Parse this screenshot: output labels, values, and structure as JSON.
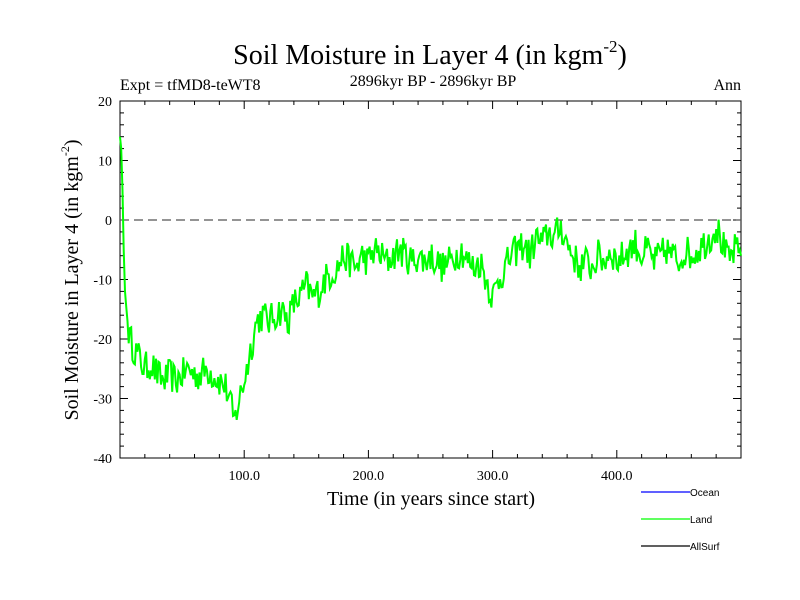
{
  "chart_data": {
    "type": "line",
    "title": "Soil Moisture in Layer 4 (in kgm",
    "title_sup": "-2",
    "title_close": ")",
    "subtitle_left": "Expt = tfMD8-teWT8",
    "subtitle_center": "2896kyr BP - 2896kyr BP",
    "subtitle_right": "Ann",
    "xlabel": "Time (in years since start)",
    "ylabel": "Soil Moisture in Layer 4 (in kgm",
    "ylabel_sup": "-2",
    "ylabel_close": ")",
    "xlim": [
      0,
      500
    ],
    "ylim": [
      -40,
      20
    ],
    "x_ticks": [
      {
        "value": 100,
        "label": "100.0"
      },
      {
        "value": 200,
        "label": "200.0"
      },
      {
        "value": 300,
        "label": "300.0"
      },
      {
        "value": 400,
        "label": "400.0"
      }
    ],
    "y_ticks": [
      {
        "value": 20,
        "label": "20"
      },
      {
        "value": 10,
        "label": "10"
      },
      {
        "value": 0,
        "label": "0"
      },
      {
        "value": -10,
        "label": "-10"
      },
      {
        "value": -20,
        "label": "-20"
      },
      {
        "value": -30,
        "label": "-30"
      },
      {
        "value": -40,
        "label": "-40"
      }
    ],
    "reference_line": {
      "y": 0,
      "style": "dashed"
    },
    "legend": [
      {
        "name": "Ocean",
        "color": "#0000ff"
      },
      {
        "name": "Land",
        "color": "#00ff00"
      },
      {
        "name": "AllSurf",
        "color": "#000000"
      }
    ],
    "series": [
      {
        "name": "Land",
        "color": "#00ff00",
        "x": [
          0,
          1,
          2,
          3,
          4,
          6,
          8,
          10,
          15,
          20,
          25,
          30,
          35,
          40,
          45,
          50,
          55,
          60,
          65,
          70,
          75,
          80,
          85,
          88,
          90,
          92,
          95,
          100,
          105,
          110,
          115,
          120,
          125,
          130,
          135,
          140,
          145,
          150,
          155,
          160,
          165,
          170,
          175,
          180,
          185,
          190,
          195,
          200,
          205,
          210,
          215,
          220,
          225,
          230,
          235,
          240,
          245,
          250,
          255,
          260,
          265,
          270,
          275,
          280,
          285,
          290,
          295,
          300,
          305,
          310,
          315,
          320,
          325,
          330,
          335,
          340,
          345,
          350,
          355,
          360,
          365,
          370,
          375,
          380,
          385,
          390,
          395,
          400,
          405,
          410,
          415,
          420,
          425,
          430,
          435,
          440,
          445,
          450,
          455,
          460,
          465,
          470,
          475,
          480,
          485,
          490,
          495,
          500
        ],
        "values": [
          14,
          12,
          5,
          -5,
          -12,
          -17,
          -20,
          -21,
          -23,
          -25,
          -24,
          -26,
          -27,
          -26,
          -27,
          -26,
          -25,
          -26,
          -26,
          -25,
          -26,
          -27,
          -28,
          -30,
          -32,
          -34,
          -31,
          -27,
          -22,
          -17,
          -16,
          -17,
          -16,
          -15,
          -17,
          -14,
          -13,
          -11,
          -13,
          -12,
          -10,
          -9,
          -8,
          -6,
          -7,
          -8,
          -6,
          -7,
          -5,
          -6,
          -7,
          -6,
          -5,
          -6,
          -7,
          -6,
          -7,
          -6,
          -7,
          -8,
          -7,
          -6,
          -5,
          -7,
          -8,
          -7,
          -10,
          -13,
          -10,
          -8,
          -6,
          -5,
          -4,
          -6,
          -3,
          -4,
          -2,
          -3,
          -1,
          -4,
          -6,
          -8,
          -7,
          -8,
          -6,
          -7,
          -5,
          -7,
          -6,
          -5,
          -4,
          -6,
          -5,
          -7,
          -6,
          -5,
          -6,
          -7,
          -5,
          -6,
          -5,
          -4,
          -3,
          -1,
          -4,
          -7,
          -5,
          -6
        ]
      }
    ]
  }
}
